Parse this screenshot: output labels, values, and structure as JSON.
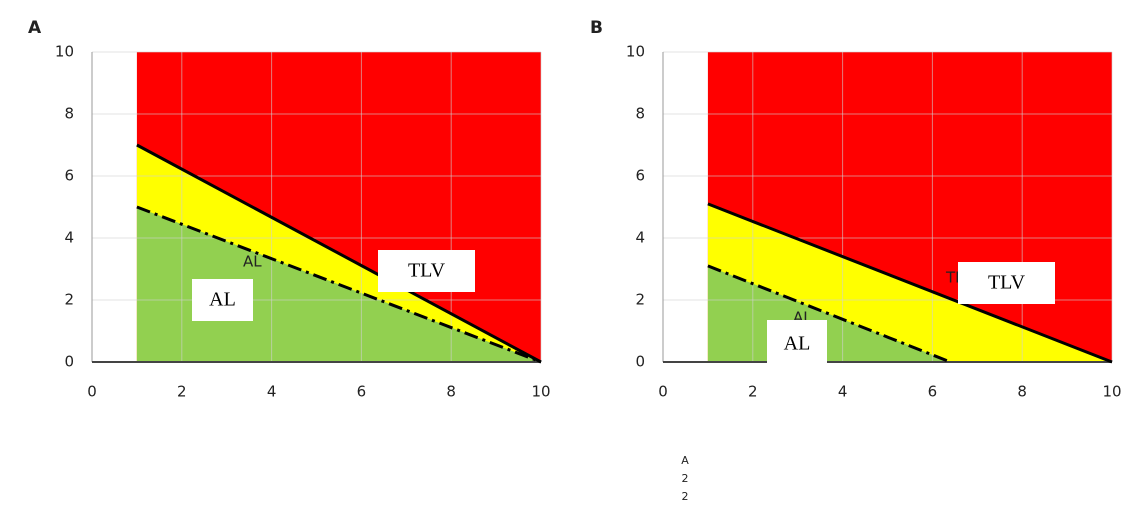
{
  "chart_data": [
    {
      "type": "zone",
      "panel": "A",
      "xlim": [
        0,
        10
      ],
      "ylim": [
        0,
        10
      ],
      "xticks": [
        0,
        2,
        4,
        6,
        8,
        10
      ],
      "yticks": [
        0,
        2,
        4,
        6,
        8,
        10
      ],
      "grid": true,
      "zone_colors": {
        "above": "#ff0000",
        "between": "#ffff00",
        "below": "#92d050"
      },
      "series": [
        {
          "name": "TLV",
          "color": "#000000",
          "style": "solid",
          "x": [
            1,
            10
          ],
          "values": [
            7,
            0
          ]
        },
        {
          "name": "AL",
          "color": "#000000",
          "style": "dashdot",
          "x": [
            1,
            10
          ],
          "values": [
            5,
            0
          ]
        }
      ]
    },
    {
      "type": "zone",
      "panel": "B",
      "xlim": [
        0,
        10
      ],
      "ylim": [
        0,
        10
      ],
      "xticks": [
        0,
        2,
        4,
        6,
        8,
        10
      ],
      "yticks": [
        0,
        2,
        4,
        6,
        8,
        10
      ],
      "grid": true,
      "zone_colors": {
        "above": "#ff0000",
        "between": "#ffff00",
        "below": "#92d050"
      },
      "series": [
        {
          "name": "TLV",
          "color": "#000000",
          "style": "solid",
          "x": [
            1,
            10
          ],
          "values": [
            5.1,
            0
          ]
        },
        {
          "name": "AL",
          "color": "#000000",
          "style": "dashdot",
          "x": [
            1,
            6.4
          ],
          "values": [
            3.1,
            0
          ]
        }
      ]
    }
  ],
  "footer_text": [
    "A",
    "2",
    "2"
  ]
}
